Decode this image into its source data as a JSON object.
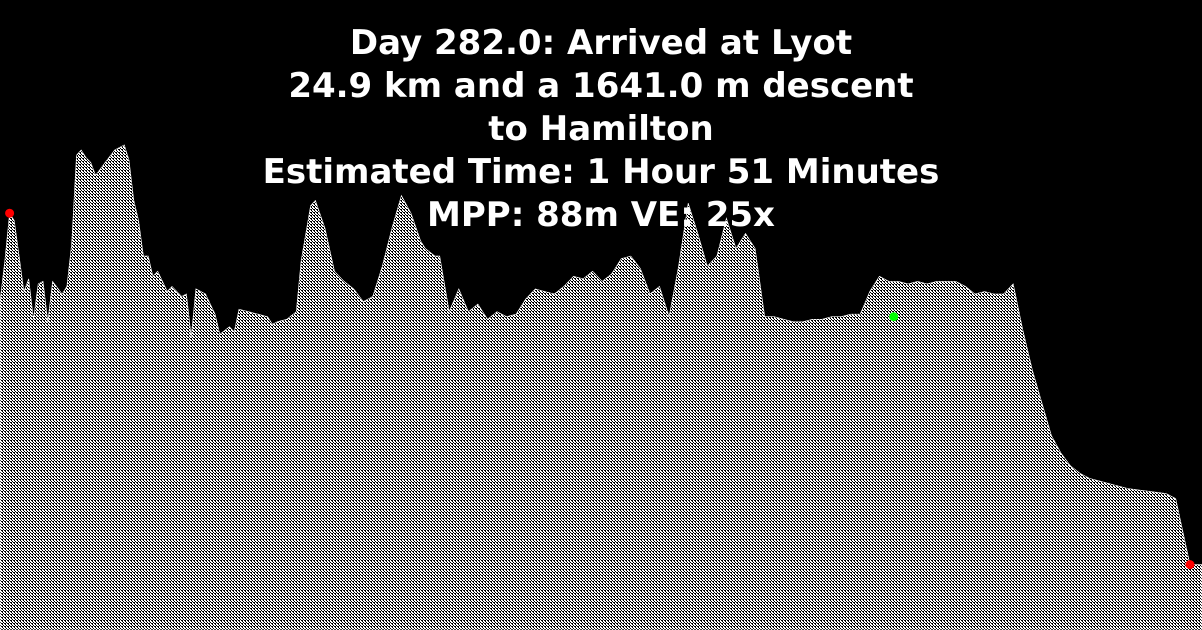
{
  "title": {
    "line1": "Day 282.0: Arrived at Lyot",
    "line2": "24.9 km and a 1641.0 m descent",
    "line3": "to Hamilton",
    "line4": "Estimated Time: 1 Hour 51 Minutes",
    "line5": "MPP: 88m VE: 25x"
  },
  "colors": {
    "background": "#000000",
    "text": "#ffffff",
    "terrain_fill": "#ffffff",
    "start_marker": "#ff0000",
    "end_marker": "#ff0000",
    "mid_marker": "#00ff00"
  },
  "chart_data": {
    "type": "area",
    "xlabel": "",
    "ylabel": "",
    "xlim": [
      0,
      24.9
    ],
    "ylim": [
      0,
      1900
    ],
    "grid": false,
    "series": [
      {
        "x": [
          0.0,
          0.1,
          0.2,
          0.3,
          0.4,
          0.5,
          0.6,
          0.7,
          0.8,
          0.9,
          1.0,
          1.1,
          1.3,
          1.4,
          1.5,
          1.6,
          1.7,
          1.8,
          1.9,
          2.0,
          2.2,
          2.4,
          2.6,
          2.7,
          2.8,
          2.9,
          3.0,
          3.1,
          3.2,
          3.3,
          3.5,
          3.6,
          3.8,
          3.9,
          4.0,
          4.1,
          4.3,
          4.5,
          4.6,
          4.8,
          4.9,
          5.0,
          5.2,
          5.4,
          5.6,
          5.7,
          5.8,
          6.0,
          6.2,
          6.3,
          6.5,
          6.6,
          6.8,
          7.0,
          7.2,
          7.4,
          7.6,
          7.8,
          8.0,
          8.2,
          8.4,
          8.6,
          8.8,
          8.9,
          9.1,
          9.2,
          9.4,
          9.6,
          9.8,
          10.0,
          10.2,
          10.4,
          10.6,
          10.8,
          11.0,
          11.2,
          11.4,
          11.6,
          11.8,
          12.0,
          12.2,
          12.4,
          12.6,
          12.8,
          13.0,
          13.2,
          13.4,
          13.6,
          13.8,
          14.0,
          14.2,
          14.4,
          14.6,
          14.8,
          15.0,
          15.2,
          15.4,
          15.6,
          15.8,
          16.0,
          16.2,
          16.4,
          16.6,
          16.8,
          17.0,
          17.2,
          17.4,
          17.6,
          17.8,
          18.0,
          18.2,
          18.4,
          18.6,
          18.8,
          19.0,
          19.2,
          19.4,
          19.6,
          19.8,
          20.0,
          20.2,
          20.4,
          20.6,
          20.8,
          21.0,
          21.2,
          21.4,
          21.6,
          21.8,
          22.0,
          22.2,
          22.4,
          22.6,
          22.8,
          23.0,
          23.2,
          23.4,
          23.6,
          23.8,
          24.0,
          24.2,
          24.4,
          24.6,
          24.9
        ],
        "y": [
          1300,
          1460,
          1650,
          1620,
          1480,
          1340,
          1390,
          1230,
          1370,
          1380,
          1220,
          1380,
          1330,
          1360,
          1530,
          1880,
          1900,
          1870,
          1850,
          1800,
          1850,
          1900,
          1920,
          1860,
          1700,
          1620,
          1480,
          1480,
          1400,
          1420,
          1340,
          1360,
          1320,
          1330,
          1160,
          1350,
          1330,
          1250,
          1170,
          1200,
          1180,
          1270,
          1260,
          1250,
          1240,
          1210,
          1220,
          1230,
          1260,
          1460,
          1680,
          1700,
          1590,
          1420,
          1380,
          1350,
          1300,
          1320,
          1440,
          1590,
          1720,
          1650,
          1540,
          1510,
          1480,
          1480,
          1260,
          1350,
          1260,
          1290,
          1230,
          1260,
          1240,
          1250,
          1310,
          1350,
          1340,
          1330,
          1360,
          1400,
          1390,
          1420,
          1380,
          1410,
          1470,
          1480,
          1430,
          1330,
          1360,
          1240,
          1440,
          1690,
          1570,
          1440,
          1480,
          1630,
          1510,
          1570,
          1510,
          1240,
          1240,
          1230,
          1220,
          1220,
          1230,
          1230,
          1240,
          1240,
          1250,
          1250,
          1340,
          1400,
          1380,
          1380,
          1370,
          1380,
          1370,
          1380,
          1380,
          1380,
          1360,
          1330,
          1340,
          1330,
          1330,
          1370,
          1190,
          1030,
          900,
          770,
          700,
          650,
          620,
          600,
          590,
          580,
          570,
          560,
          555,
          550,
          545,
          540,
          520,
          259
        ]
      }
    ],
    "markers": [
      {
        "name": "start",
        "x": 0.2,
        "y": 1650
      },
      {
        "name": "mid",
        "x": 18.7,
        "y": 1240
      },
      {
        "name": "end",
        "x": 24.9,
        "y": 259
      }
    ]
  }
}
